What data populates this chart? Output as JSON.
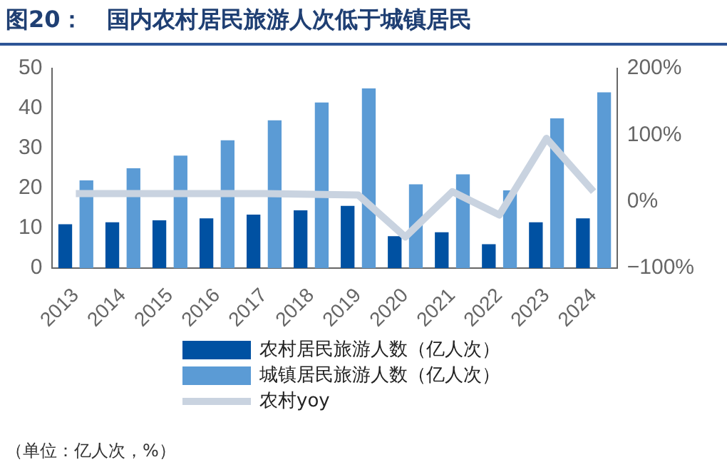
{
  "chart_data": {
    "type": "bar",
    "title": "图20：   国内农村居民旅游人次低于城镇居民",
    "categories": [
      "2013",
      "2014",
      "2015",
      "2016",
      "2017",
      "2018",
      "2019",
      "2020",
      "2021",
      "2022",
      "2023",
      "2024"
    ],
    "series": [
      {
        "name": "农村居民旅游人数（亿人次）",
        "color": "#0051a2",
        "values": [
          11,
          11.5,
          12,
          12.5,
          13.4,
          14.5,
          15.6,
          8,
          9,
          6,
          11.5,
          12.5
        ]
      },
      {
        "name": "城镇居民旅游人数（亿人次）",
        "color": "#5b9bd5",
        "values": [
          22,
          25,
          28.2,
          32,
          37,
          41.5,
          45,
          21,
          23.5,
          19.5,
          37.5,
          44
        ]
      },
      {
        "name": "农村yoy",
        "type": "line",
        "axis": "y2",
        "color": "#c9d3e0",
        "values": [
          12,
          12,
          12,
          12,
          12,
          11,
          10,
          -53,
          15,
          -20,
          95,
          15
        ]
      }
    ],
    "ylim": [
      0,
      50
    ],
    "yticks": [
      0,
      10,
      20,
      30,
      40,
      50
    ],
    "y2lim": [
      -100,
      200
    ],
    "y2ticks": [
      {
        "value": -100,
        "label": "−100%"
      },
      {
        "value": 0,
        "label": "0%"
      },
      {
        "value": 100,
        "label": "100%"
      },
      {
        "value": 200,
        "label": "200%"
      }
    ],
    "legend": "bottom",
    "grid": false,
    "marker": "none",
    "annotations": [
      "（单位：亿人次，%）"
    ]
  }
}
